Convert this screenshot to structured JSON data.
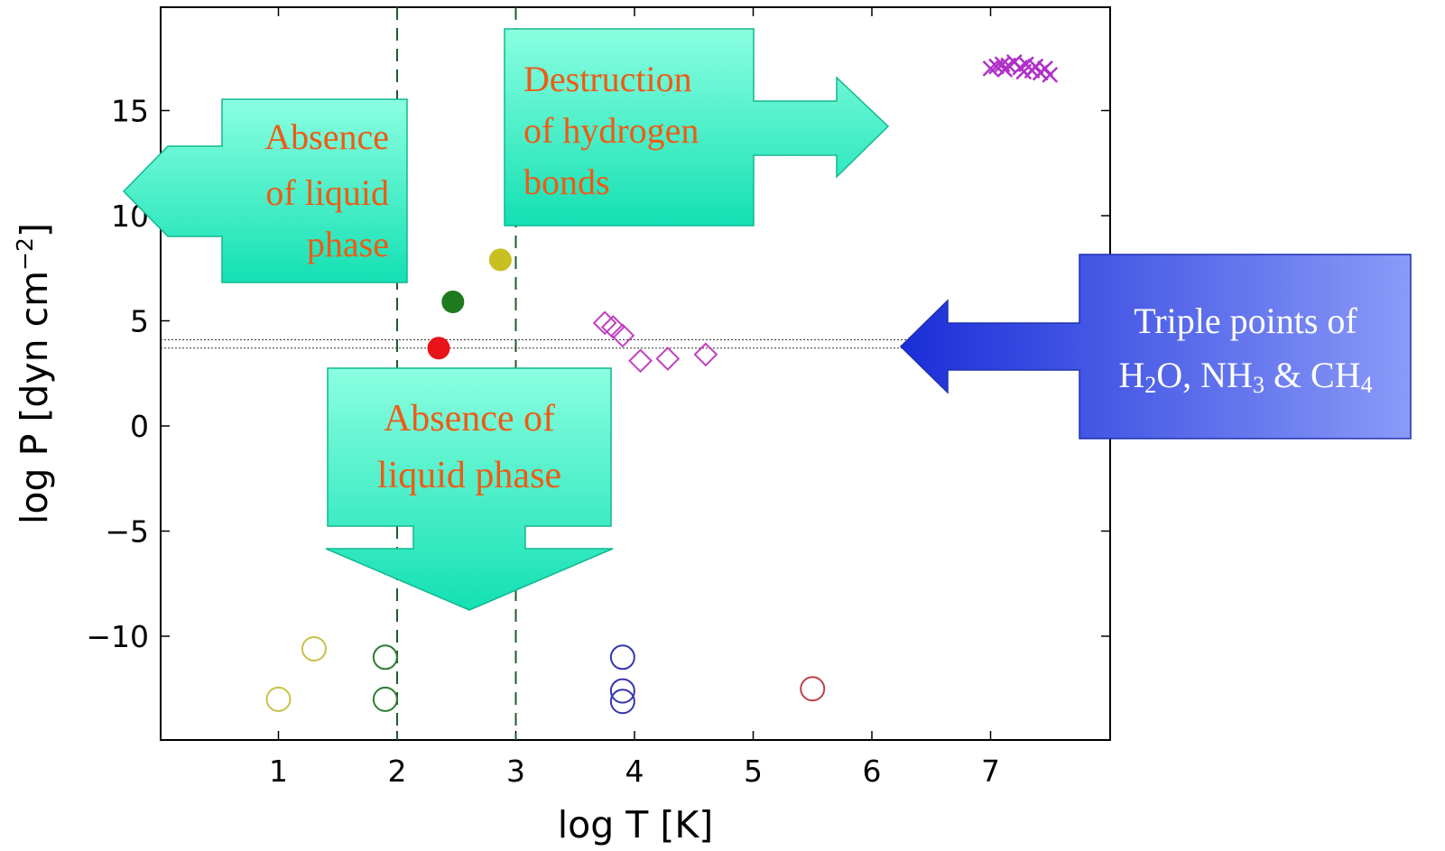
{
  "chart_data": {
    "type": "scatter",
    "xlabel": "log T [K]",
    "ylabel": "log P [dyn cm",
    "ylabel_exp": "−2",
    "ylabel_close": "]",
    "xlim": [
      0,
      7.5
    ],
    "ylim": [
      -15,
      20
    ],
    "xticks": [
      1,
      2,
      3,
      4,
      5,
      6,
      7
    ],
    "xtick_labels": [
      "1",
      "2",
      "3",
      "4",
      "5",
      "6",
      "7"
    ],
    "yticks": [
      -10,
      -5,
      0,
      5,
      10,
      15
    ],
    "ytick_labels": [
      "−10",
      "−5",
      "0",
      "5",
      "10",
      "15"
    ],
    "grid": false,
    "vlines": [
      2,
      3
    ],
    "hlines": [
      4.1,
      3.7
    ],
    "filled_points": [
      {
        "x": 2.35,
        "y": 3.7,
        "color": "#e8141a"
      },
      {
        "x": 2.47,
        "y": 5.9,
        "color": "#1d7a1d"
      },
      {
        "x": 2.87,
        "y": 7.9,
        "color": "#c8c020"
      }
    ],
    "open_circles": [
      {
        "x": 1.0,
        "y": -13.0,
        "color": "#c9c04a"
      },
      {
        "x": 1.3,
        "y": -10.6,
        "color": "#c9c04a"
      },
      {
        "x": 1.9,
        "y": -11.0,
        "color": "#2e7d32"
      },
      {
        "x": 1.9,
        "y": -13.0,
        "color": "#2e7d32"
      },
      {
        "x": 3.9,
        "y": -11.0,
        "color": "#3535b5"
      },
      {
        "x": 3.9,
        "y": -12.6,
        "color": "#3535b5"
      },
      {
        "x": 3.9,
        "y": -13.1,
        "color": "#3535b5"
      },
      {
        "x": 5.5,
        "y": -12.5,
        "color": "#c0404a"
      }
    ],
    "diamonds": [
      {
        "x": 3.75,
        "y": 4.9
      },
      {
        "x": 3.82,
        "y": 4.7
      },
      {
        "x": 3.9,
        "y": 4.3
      },
      {
        "x": 4.05,
        "y": 3.1
      },
      {
        "x": 4.28,
        "y": 3.2
      },
      {
        "x": 4.6,
        "y": 3.4
      }
    ],
    "crosses": [
      {
        "x": 7.0,
        "y": 17.0
      },
      {
        "x": 7.05,
        "y": 17.1
      },
      {
        "x": 7.1,
        "y": 17.2
      },
      {
        "x": 7.15,
        "y": 17.15
      },
      {
        "x": 7.2,
        "y": 17.3
      },
      {
        "x": 7.25,
        "y": 17.05
      },
      {
        "x": 7.3,
        "y": 17.2
      },
      {
        "x": 7.35,
        "y": 16.9
      },
      {
        "x": 7.38,
        "y": 17.1
      },
      {
        "x": 7.42,
        "y": 16.8
      },
      {
        "x": 7.46,
        "y": 17.0
      },
      {
        "x": 7.5,
        "y": 16.7
      },
      {
        "x": 7.12,
        "y": 16.95
      },
      {
        "x": 7.28,
        "y": 16.85
      }
    ],
    "colors": {
      "diamond": "#c040c0",
      "cross": "#b030c8",
      "dashed_v": "#1e5a32",
      "dotted_h": "#333333",
      "teal_box_top": "#8affe0",
      "teal_box_bottom": "#14e0b4",
      "blue_box": "#6a70f0",
      "annotation_text": "#f05a14"
    }
  },
  "annotations": {
    "absence_left": [
      "Absence",
      "of liquid",
      "phase"
    ],
    "destruction": [
      "Destruction",
      "of hydrogen",
      "bonds"
    ],
    "absence_bottom": [
      "Absence of",
      "liquid phase"
    ],
    "triple_line1": "Triple points of",
    "triple_h2o_1": "H",
    "triple_h2o_sub": "2",
    "triple_h2o_2": "O, NH",
    "triple_nh3_sub": "3",
    "triple_amp": " & CH",
    "triple_ch4_sub": "4"
  }
}
